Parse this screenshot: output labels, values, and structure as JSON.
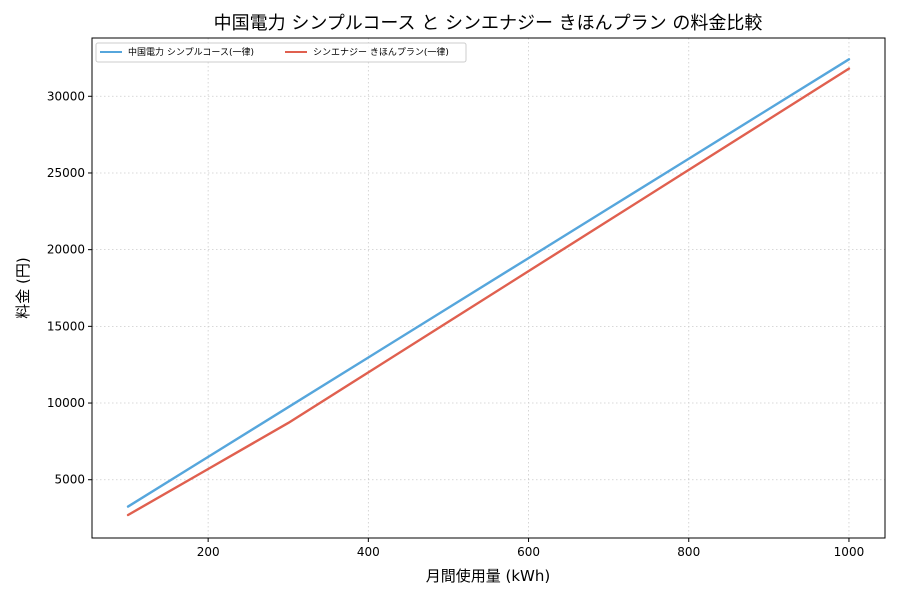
{
  "chart_data": {
    "type": "line",
    "title": "中国電力 シンプルコース と シンエナジー きほんプラン の料金比較",
    "xlabel": "月間使用量 (kWh)",
    "ylabel": "料金 (円)",
    "xlim": [
      55,
      1045
    ],
    "ylim": [
      1200,
      33800
    ],
    "xticks": [
      200,
      400,
      600,
      800,
      1000
    ],
    "yticks": [
      5000,
      10000,
      15000,
      20000,
      25000,
      30000
    ],
    "grid": true,
    "legend_position": "upper-left",
    "series": [
      {
        "name": "中国電力 シンプルコース(一律)",
        "color": "#56a6dc",
        "x": [
          100,
          200,
          300,
          400,
          500,
          600,
          700,
          800,
          900,
          1000
        ],
        "y": [
          3250,
          6490,
          9730,
          12970,
          16210,
          19450,
          22690,
          25930,
          29170,
          32410
        ]
      },
      {
        "name": "シンエナジー きほんプラン(一律)",
        "color": "#e0604f",
        "x": [
          100,
          200,
          300,
          400,
          500,
          600,
          700,
          800,
          900,
          1000
        ],
        "y": [
          2700,
          5700,
          8700,
          12000,
          15300,
          18600,
          21900,
          25200,
          28500,
          31800
        ]
      }
    ]
  }
}
